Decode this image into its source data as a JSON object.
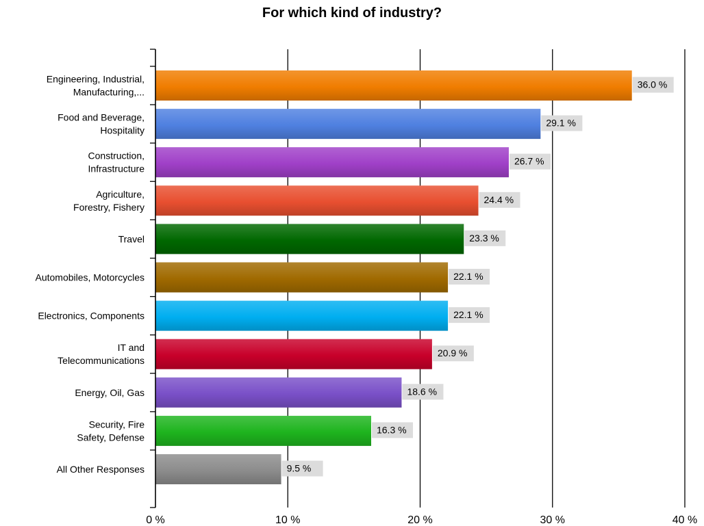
{
  "chart_data": {
    "type": "bar",
    "orientation": "horizontal",
    "title": "For which kind of industry?",
    "xlabel": "",
    "ylabel": "",
    "xlim": [
      0,
      40
    ],
    "x_ticks": [
      0,
      10,
      20,
      30,
      40
    ],
    "x_tick_labels": [
      "0 %",
      "10 %",
      "20 %",
      "30 %",
      "40 %"
    ],
    "grid": "vertical lines at ticks",
    "legend": "none",
    "categories": [
      [
        "Engineering, Industrial,",
        "Manufacturing,..."
      ],
      [
        "Food and Beverage,",
        "Hospitality"
      ],
      [
        "Construction,",
        "Infrastructure"
      ],
      [
        "Agriculture,",
        "Forestry, Fishery"
      ],
      [
        "Travel"
      ],
      [
        "Automobiles, Motorcycles"
      ],
      [
        "Electronics, Components"
      ],
      [
        "IT and",
        "Telecommunications"
      ],
      [
        "Energy, Oil, Gas"
      ],
      [
        "Security, Fire",
        "Safety, Defense"
      ],
      [
        "All Other Responses"
      ]
    ],
    "values": [
      36.0,
      29.1,
      26.7,
      24.4,
      23.3,
      22.1,
      22.1,
      20.9,
      18.6,
      16.3,
      9.5
    ],
    "value_labels": [
      "36.0 %",
      "29.1 %",
      "26.7 %",
      "24.4 %",
      "23.3 %",
      "22.1 %",
      "22.1 %",
      "20.9 %",
      "18.6 %",
      "16.3 %",
      "9.5 %"
    ],
    "colors": [
      "#f07d00",
      "#4f80e0",
      "#a040c8",
      "#e84f30",
      "#006800",
      "#a06a00",
      "#00aef0",
      "#c8002a",
      "#7a50c8",
      "#1eb41e",
      "#8c8c8c"
    ],
    "label_bg_color": "#dcdcdc"
  }
}
